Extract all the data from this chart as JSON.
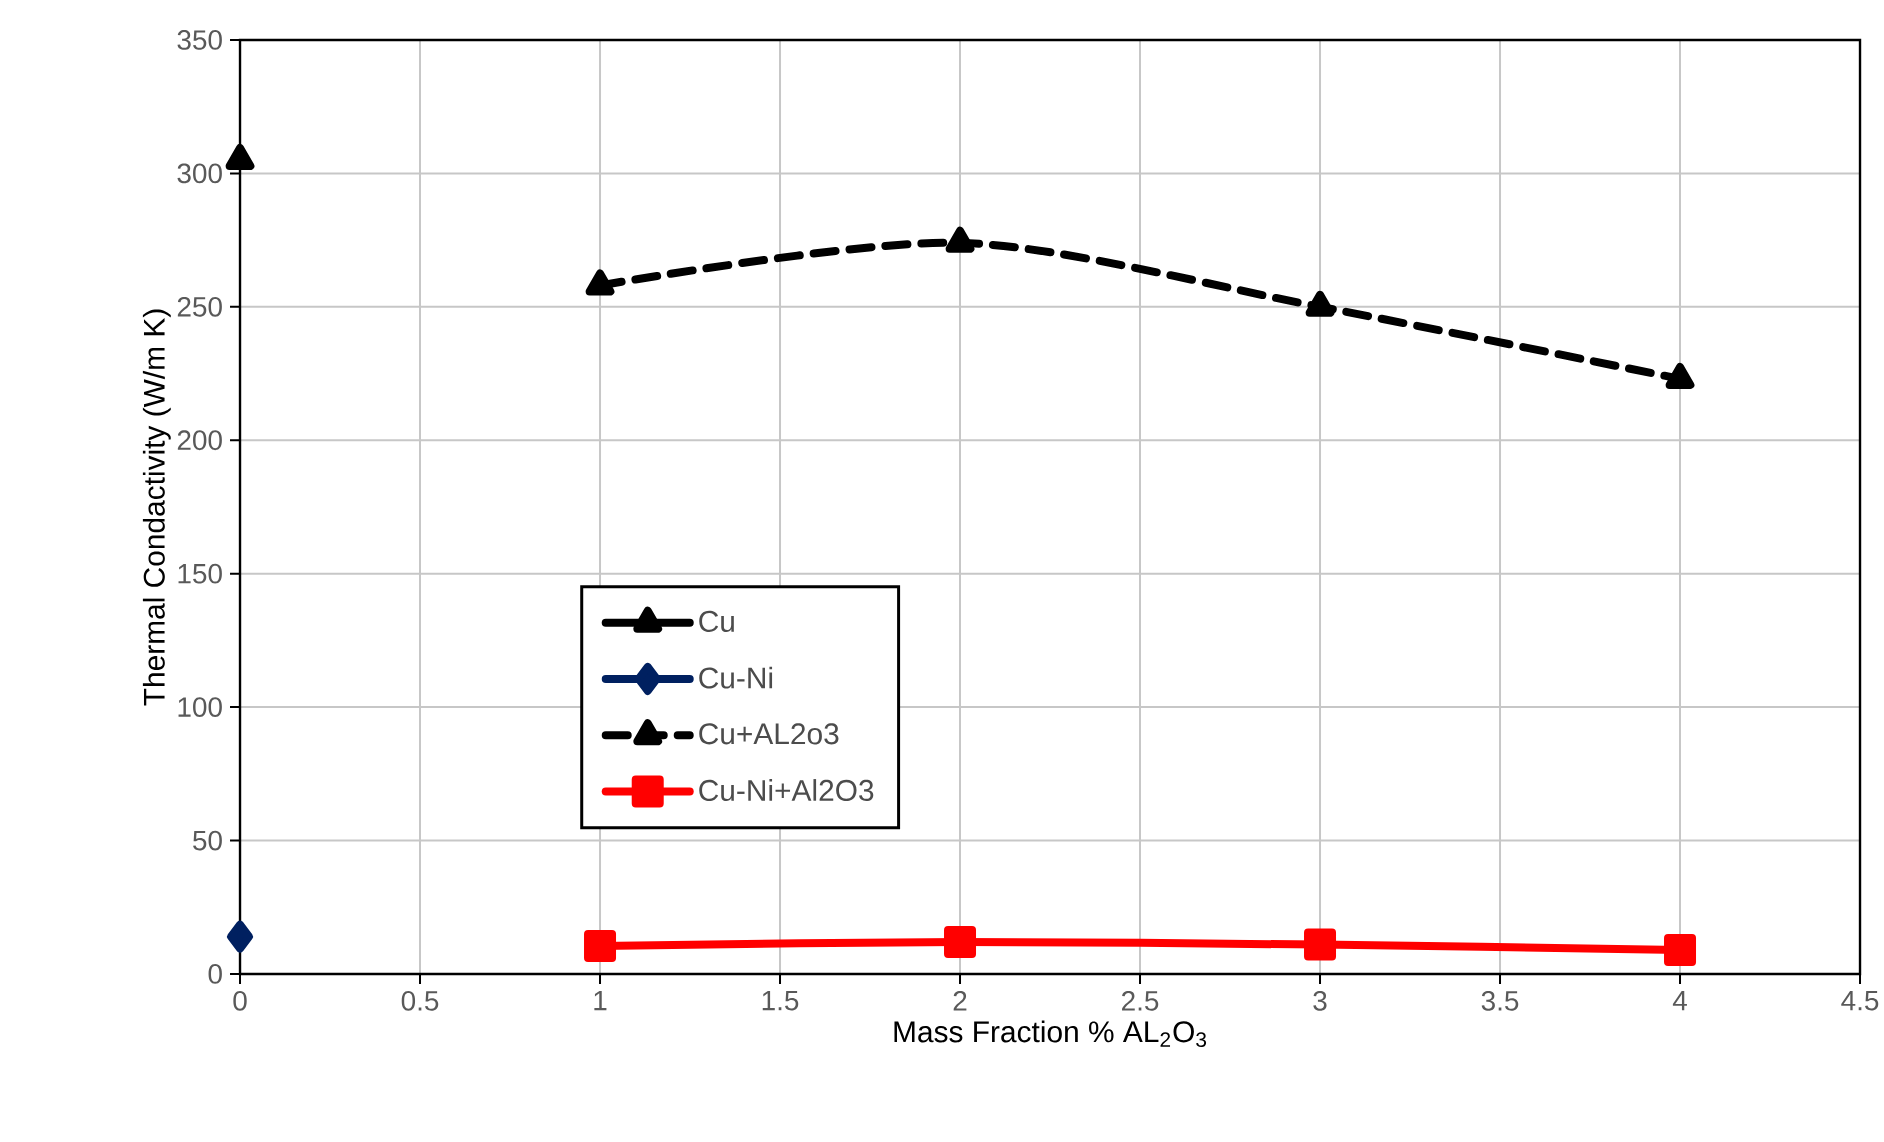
{
  "chart_data": {
    "type": "line",
    "xlabel": "Mass Fraction % AL$_{2}$O$_{3}$",
    "ylabel": "Thermal Condactivity (W/m K)",
    "xlim": [
      0,
      4.5
    ],
    "xticks": [
      0,
      0.5,
      1,
      1.5,
      2,
      2.5,
      3,
      3.5,
      4,
      4.5
    ],
    "ylim": [
      0,
      350
    ],
    "yticks": [
      0,
      50,
      100,
      150,
      200,
      250,
      300,
      350
    ],
    "grid": true,
    "legend": "center",
    "series": [
      {
        "name": "Cu",
        "color": "#000000",
        "marker": "triangle",
        "line_style": "solid",
        "x": [
          0
        ],
        "values": [
          305
        ]
      },
      {
        "name": "Cu-Ni",
        "color": "#002060",
        "marker": "diamond",
        "line_style": "solid",
        "x": [
          0
        ],
        "values": [
          14
        ]
      },
      {
        "name": "Cu+AL2o3",
        "color": "#000000",
        "marker": "triangle",
        "line_style": "dashed",
        "x": [
          1,
          2,
          3,
          4
        ],
        "values": [
          258,
          274,
          250,
          223
        ]
      },
      {
        "name": "Cu-Ni+Al2O3",
        "color": "#ff0000",
        "marker": "square",
        "line_style": "solid",
        "x": [
          1,
          2,
          3,
          4
        ],
        "values": [
          10.5,
          12,
          11,
          9
        ]
      }
    ]
  }
}
